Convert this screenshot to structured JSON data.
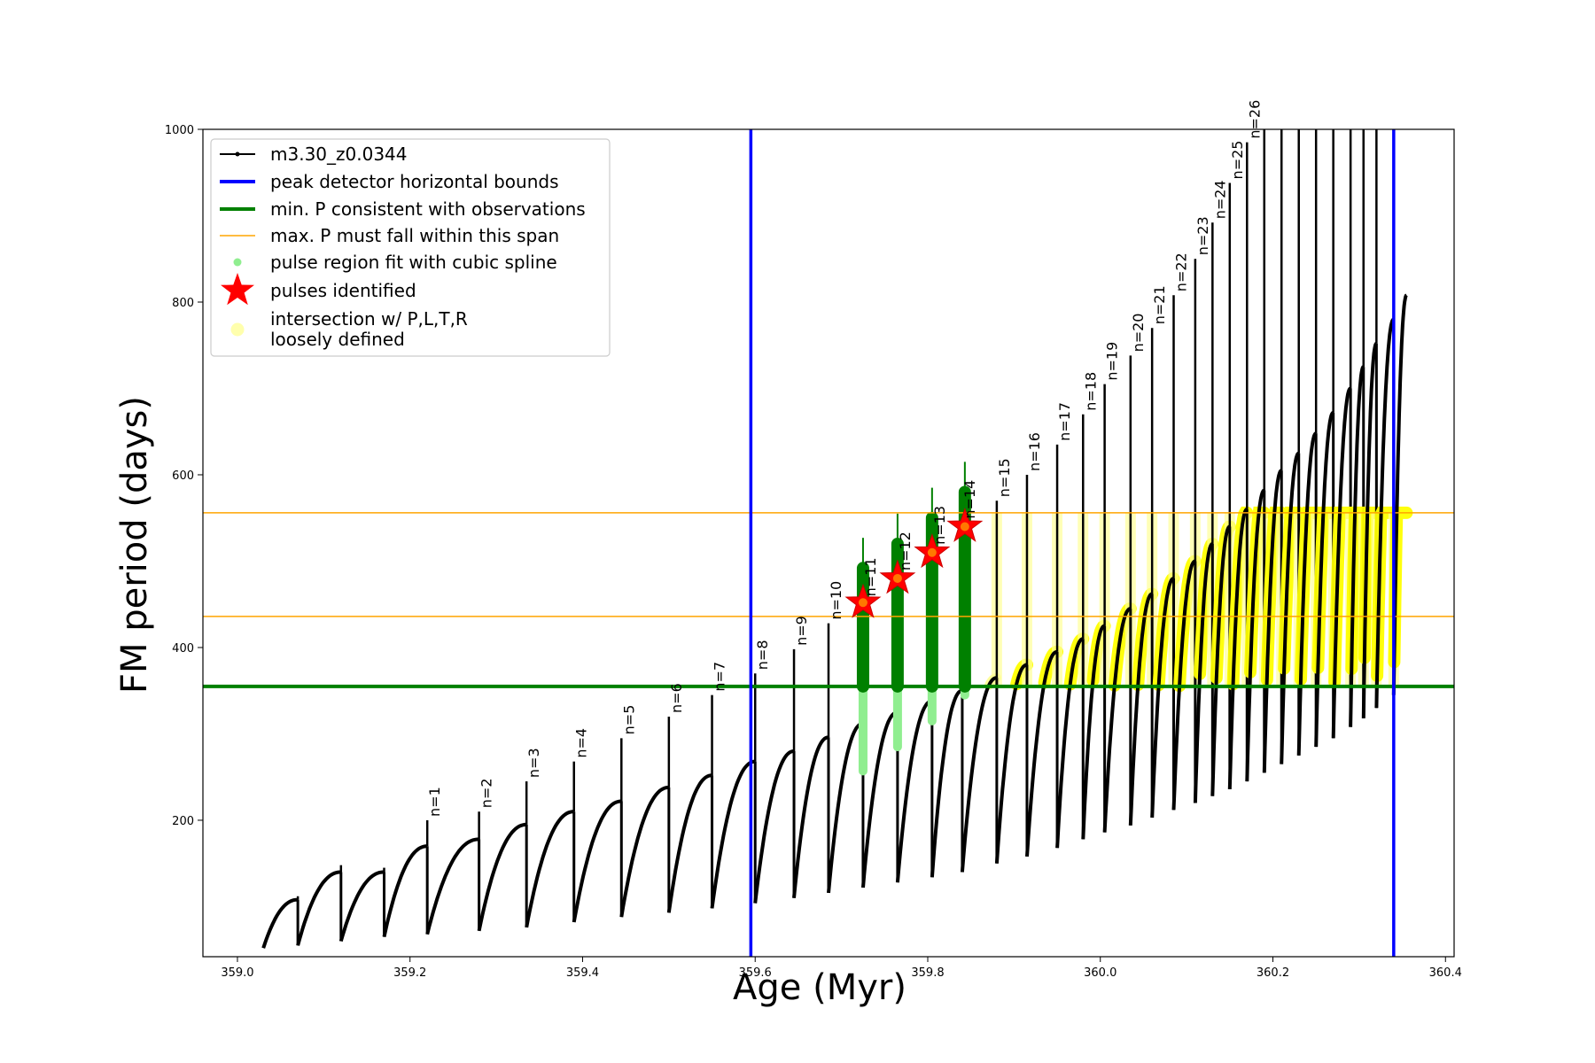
{
  "chart_data": {
    "type": "line",
    "xlabel": "Age (Myr)",
    "ylabel": "FM period (days)",
    "xlim": [
      358.96,
      360.41
    ],
    "ylim": [
      42,
      1000
    ],
    "xticks": [
      {
        "value": 359.0,
        "label": "359.0"
      },
      {
        "value": 359.2,
        "label": "359.2"
      },
      {
        "value": 359.4,
        "label": "359.4"
      },
      {
        "value": 359.6,
        "label": "359.6"
      },
      {
        "value": 359.8,
        "label": "359.8"
      },
      {
        "value": 360.0,
        "label": "360.0"
      },
      {
        "value": 360.2,
        "label": "360.2"
      },
      {
        "value": 360.4,
        "label": "360.4"
      }
    ],
    "yticks": [
      {
        "value": 200,
        "label": "200"
      },
      {
        "value": 400,
        "label": "400"
      },
      {
        "value": 600,
        "label": "600"
      },
      {
        "value": 800,
        "label": "800"
      },
      {
        "value": 1000,
        "label": "1000"
      }
    ],
    "legend_position": "upper-left",
    "legend": [
      {
        "key": "track",
        "label": "m3.30_z0.0344",
        "color": "#000000"
      },
      {
        "key": "bounds",
        "label": "peak detector horizontal bounds",
        "color": "#0000ff"
      },
      {
        "key": "minP",
        "label": "min. P consistent with observations",
        "color": "#008000"
      },
      {
        "key": "maxP",
        "label": "max. P must fall within this span",
        "color": "#ffa500"
      },
      {
        "key": "spline",
        "label": "pulse region fit with cubic spline",
        "color": "#90ee90"
      },
      {
        "key": "pulses",
        "label": "pulses identified",
        "color": "#ff0000"
      },
      {
        "key": "loose",
        "label": "intersection w/ P,L,T,R",
        "label2": "loosely defined",
        "color": "#ffff99"
      }
    ],
    "vertical_bounds": [
      359.595,
      360.34
    ],
    "min_period": 355,
    "max_period_span": [
      436,
      556
    ],
    "cycles": [
      {
        "x0": 359.03,
        "x1": 359.07,
        "min": 52,
        "max": 108,
        "spike": 112,
        "label": ""
      },
      {
        "x0": 359.07,
        "x1": 359.12,
        "min": 55,
        "max": 140,
        "spike": 148,
        "label": ""
      },
      {
        "x0": 359.12,
        "x1": 359.17,
        "min": 60,
        "max": 140,
        "spike": 145,
        "label": ""
      },
      {
        "x0": 359.17,
        "x1": 359.22,
        "min": 65,
        "max": 170,
        "spike": 200,
        "label": "n=1"
      },
      {
        "x0": 359.22,
        "x1": 359.28,
        "min": 68,
        "max": 178,
        "spike": 210,
        "label": "n=2"
      },
      {
        "x0": 359.28,
        "x1": 359.335,
        "min": 72,
        "max": 195,
        "spike": 245,
        "label": "n=3"
      },
      {
        "x0": 359.335,
        "x1": 359.39,
        "min": 76,
        "max": 210,
        "spike": 268,
        "label": "n=4"
      },
      {
        "x0": 359.39,
        "x1": 359.445,
        "min": 82,
        "max": 222,
        "spike": 295,
        "label": "n=5"
      },
      {
        "x0": 359.445,
        "x1": 359.5,
        "min": 88,
        "max": 238,
        "spike": 320,
        "label": "n=6"
      },
      {
        "x0": 359.5,
        "x1": 359.55,
        "min": 93,
        "max": 252,
        "spike": 345,
        "label": "n=7"
      },
      {
        "x0": 359.55,
        "x1": 359.6,
        "min": 98,
        "max": 268,
        "spike": 370,
        "label": "n=8"
      },
      {
        "x0": 359.6,
        "x1": 359.645,
        "min": 104,
        "max": 280,
        "spike": 398,
        "label": "n=9"
      },
      {
        "x0": 359.645,
        "x1": 359.685,
        "min": 110,
        "max": 296,
        "spike": 428,
        "label": "n=10"
      },
      {
        "x0": 359.685,
        "x1": 359.725,
        "min": 116,
        "max": 312,
        "spike": 455,
        "label": "n=11"
      },
      {
        "x0": 359.725,
        "x1": 359.765,
        "min": 122,
        "max": 325,
        "spike": 485,
        "label": "n=12"
      },
      {
        "x0": 359.765,
        "x1": 359.805,
        "min": 128,
        "max": 338,
        "spike": 515,
        "label": "n=13"
      },
      {
        "x0": 359.805,
        "x1": 359.84,
        "min": 134,
        "max": 350,
        "spike": 545,
        "label": "n=14"
      },
      {
        "x0": 359.84,
        "x1": 359.88,
        "min": 140,
        "max": 365,
        "spike": 570,
        "label": "n=15"
      },
      {
        "x0": 359.88,
        "x1": 359.915,
        "min": 150,
        "max": 380,
        "spike": 600,
        "label": "n=16"
      },
      {
        "x0": 359.915,
        "x1": 359.95,
        "min": 158,
        "max": 395,
        "spike": 635,
        "label": "n=17"
      },
      {
        "x0": 359.95,
        "x1": 359.98,
        "min": 168,
        "max": 410,
        "spike": 670,
        "label": "n=18"
      },
      {
        "x0": 359.98,
        "x1": 360.005,
        "min": 178,
        "max": 425,
        "spike": 705,
        "label": "n=19"
      },
      {
        "x0": 360.005,
        "x1": 360.035,
        "min": 186,
        "max": 445,
        "spike": 738,
        "label": "n=20"
      },
      {
        "x0": 360.035,
        "x1": 360.06,
        "min": 194,
        "max": 462,
        "spike": 770,
        "label": "n=21"
      },
      {
        "x0": 360.06,
        "x1": 360.085,
        "min": 203,
        "max": 480,
        "spike": 808,
        "label": "n=22"
      },
      {
        "x0": 360.085,
        "x1": 360.11,
        "min": 212,
        "max": 500,
        "spike": 850,
        "label": "n=23"
      },
      {
        "x0": 360.11,
        "x1": 360.13,
        "min": 220,
        "max": 520,
        "spike": 892,
        "label": "n=24"
      },
      {
        "x0": 360.13,
        "x1": 360.15,
        "min": 228,
        "max": 540,
        "spike": 938,
        "label": "n=25"
      },
      {
        "x0": 360.15,
        "x1": 360.17,
        "min": 236,
        "max": 560,
        "spike": 985,
        "label": "n=26"
      },
      {
        "x0": 360.17,
        "x1": 360.19,
        "min": 245,
        "max": 582,
        "spike": 1000,
        "label": ""
      },
      {
        "x0": 360.19,
        "x1": 360.21,
        "min": 255,
        "max": 605,
        "spike": 1000,
        "label": ""
      },
      {
        "x0": 360.21,
        "x1": 360.23,
        "min": 265,
        "max": 625,
        "spike": 1000,
        "label": ""
      },
      {
        "x0": 360.23,
        "x1": 360.25,
        "min": 275,
        "max": 648,
        "spike": 1000,
        "label": ""
      },
      {
        "x0": 360.25,
        "x1": 360.27,
        "min": 285,
        "max": 672,
        "spike": 1000,
        "label": ""
      },
      {
        "x0": 360.27,
        "x1": 360.29,
        "min": 295,
        "max": 700,
        "spike": 1000,
        "label": ""
      },
      {
        "x0": 360.29,
        "x1": 360.305,
        "min": 308,
        "max": 725,
        "spike": 1000,
        "label": ""
      },
      {
        "x0": 360.305,
        "x1": 360.32,
        "min": 318,
        "max": 752,
        "spike": 1000,
        "label": ""
      },
      {
        "x0": 360.32,
        "x1": 360.34,
        "min": 330,
        "max": 780,
        "spike": 1000,
        "label": ""
      },
      {
        "x0": 360.34,
        "x1": 360.355,
        "min": 345,
        "max": 808,
        "spike": null,
        "label": ""
      }
    ],
    "pulses_identified": [
      {
        "x": 359.725,
        "y": 452
      },
      {
        "x": 359.765,
        "y": 480
      },
      {
        "x": 359.805,
        "y": 510
      },
      {
        "x": 359.843,
        "y": 540
      }
    ]
  }
}
